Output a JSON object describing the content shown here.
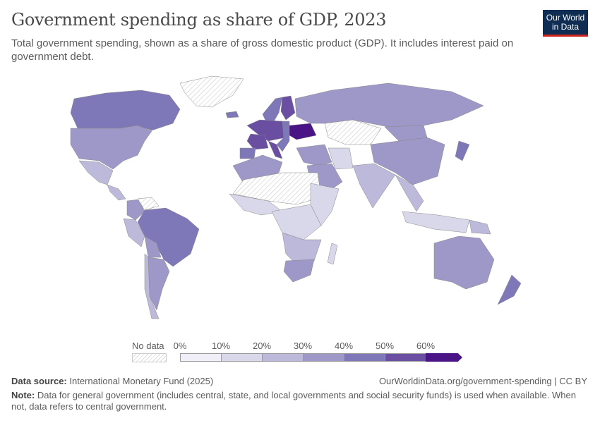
{
  "header": {
    "title": "Government spending as share of GDP, 2023",
    "subtitle": "Total government spending, shown as a share of gross domestic product (GDP). It includes interest paid on government debt.",
    "logo_line1": "Our World",
    "logo_line2": "in Data"
  },
  "legend": {
    "no_data_label": "No data",
    "ticks": [
      "0%",
      "10%",
      "20%",
      "30%",
      "40%",
      "50%",
      "60%"
    ],
    "bins": [
      {
        "range": [
          0,
          10
        ],
        "color": "#f0eff7"
      },
      {
        "range": [
          10,
          20
        ],
        "color": "#d9d8ea"
      },
      {
        "range": [
          20,
          30
        ],
        "color": "#bcb9db"
      },
      {
        "range": [
          30,
          40
        ],
        "color": "#9d98c8"
      },
      {
        "range": [
          40,
          50
        ],
        "color": "#7f78b8"
      },
      {
        "range": [
          50,
          60
        ],
        "color": "#6a4ea2"
      },
      {
        "range": [
          60,
          null
        ],
        "color": "#4a1486"
      }
    ],
    "no_data_color": "hatched"
  },
  "chart_data": {
    "type": "choropleth",
    "unit": "% of GDP",
    "year": 2023,
    "regions": [
      {
        "name": "Canada",
        "value": 42
      },
      {
        "name": "United States",
        "value": 37
      },
      {
        "name": "Mexico",
        "value": 26
      },
      {
        "name": "Central America",
        "value": 22
      },
      {
        "name": "Colombia",
        "value": 33
      },
      {
        "name": "Venezuela",
        "value": null
      },
      {
        "name": "Brazil",
        "value": 46
      },
      {
        "name": "Peru",
        "value": 22
      },
      {
        "name": "Bolivia",
        "value": 34
      },
      {
        "name": "Argentina",
        "value": 38
      },
      {
        "name": "Chile",
        "value": 27
      },
      {
        "name": "Greenland",
        "value": null
      },
      {
        "name": "Iceland",
        "value": 42
      },
      {
        "name": "Scandinavia",
        "value": 48
      },
      {
        "name": "Finland",
        "value": 55
      },
      {
        "name": "Western Europe",
        "value": 52
      },
      {
        "name": "France",
        "value": 57
      },
      {
        "name": "Spain",
        "value": 46
      },
      {
        "name": "Italy",
        "value": 54
      },
      {
        "name": "Eastern Europe",
        "value": 42
      },
      {
        "name": "Ukraine",
        "value": 66
      },
      {
        "name": "Russia",
        "value": 36
      },
      {
        "name": "Kazakhstan",
        "value": null
      },
      {
        "name": "Middle East",
        "value": 32
      },
      {
        "name": "Saudi Arabia",
        "value": 33
      },
      {
        "name": "Iran",
        "value": 15
      },
      {
        "name": "India",
        "value": 28
      },
      {
        "name": "China",
        "value": 33
      },
      {
        "name": "Mongolia",
        "value": 36
      },
      {
        "name": "Japan",
        "value": 42
      },
      {
        "name": "Southeast Asia",
        "value": 20
      },
      {
        "name": "Indonesia",
        "value": 16
      },
      {
        "name": "Papua New Guinea",
        "value": 21
      },
      {
        "name": "Australia",
        "value": 38
      },
      {
        "name": "New Zealand",
        "value": 43
      },
      {
        "name": "North Africa",
        "value": 36
      },
      {
        "name": "Sahara",
        "value": null
      },
      {
        "name": "West Africa",
        "value": 18
      },
      {
        "name": "Central Africa",
        "value": 14
      },
      {
        "name": "East Africa",
        "value": 17
      },
      {
        "name": "Southern Africa",
        "value": 26
      },
      {
        "name": "South Africa",
        "value": 33
      },
      {
        "name": "Madagascar",
        "value": 17
      }
    ]
  },
  "footer": {
    "source_label": "Data source:",
    "source_text": "International Monetary Fund (2025)",
    "url": "OurWorldinData.org/government-spending | CC BY",
    "note_label": "Note:",
    "note_text": "Data for general government (includes central, state, and local governments and social security funds) is used when available. When not, data refers to central government."
  }
}
